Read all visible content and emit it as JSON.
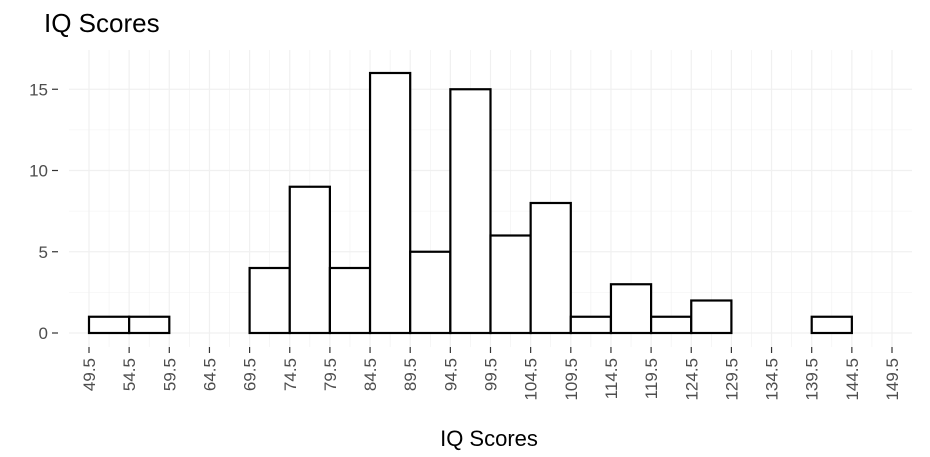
{
  "chart_data": {
    "type": "bar",
    "title": "IQ Scores",
    "xlabel": "IQ Scores",
    "ylabel": "",
    "bin_edges": [
      49.5,
      54.5,
      59.5,
      64.5,
      69.5,
      74.5,
      79.5,
      84.5,
      89.5,
      94.5,
      99.5,
      104.5,
      109.5,
      114.5,
      119.5,
      124.5,
      129.5,
      134.5,
      139.5,
      144.5,
      149.5
    ],
    "counts": [
      1,
      1,
      0,
      0,
      4,
      9,
      4,
      16,
      5,
      15,
      6,
      8,
      1,
      3,
      1,
      2,
      0,
      0,
      1,
      0
    ],
    "x_tick_labels": [
      "49.5",
      "54.5",
      "59.5",
      "64.5",
      "69.5",
      "74.5",
      "79.5",
      "84.5",
      "89.5",
      "94.5",
      "99.5",
      "104.5",
      "109.5",
      "114.5",
      "119.5",
      "124.5",
      "129.5",
      "134.5",
      "139.5",
      "144.5",
      "149.5"
    ],
    "y_ticks": [
      0,
      5,
      10,
      15
    ],
    "xlim": [
      49.5,
      149.5
    ],
    "ylim": [
      0,
      16.8
    ],
    "grid": true,
    "bar_fill": "#ffffff",
    "bar_stroke": "#000000",
    "background": "#ffffff",
    "grid_color": "#f0f0f0"
  }
}
